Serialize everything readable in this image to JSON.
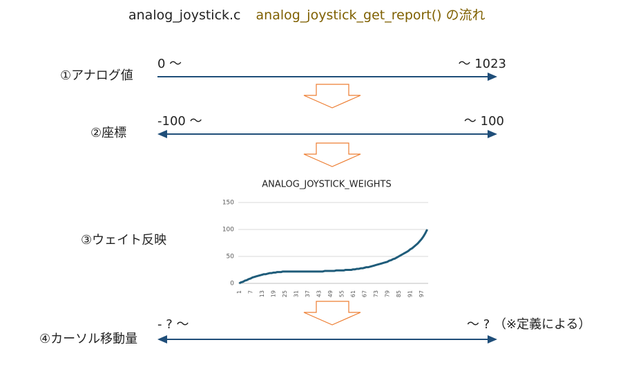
{
  "title": {
    "file": "analog_joystick.c",
    "function": "analog_joystick_get_report()",
    "suffix": "の流れ"
  },
  "rows": [
    {
      "label": "①アナログ値",
      "left": "0 〜",
      "right": "〜 1023"
    },
    {
      "label": "②座標",
      "left": "-100 〜",
      "right": "〜 100"
    },
    {
      "label": "③ウェイト反映"
    },
    {
      "label": "④カーソル移動量",
      "left": "- ? 〜",
      "right": "〜 ? （※定義による）"
    }
  ],
  "chart_data": {
    "type": "line",
    "title": "ANALOG_JOYSTICK_WEIGHTS",
    "color": "#1f5c7a",
    "categories": [
      1,
      null,
      null,
      null,
      null,
      null,
      7,
      null,
      null,
      null,
      null,
      null,
      13,
      null,
      null,
      null,
      null,
      null,
      19,
      null,
      null,
      null,
      null,
      null,
      25,
      null,
      null,
      null,
      null,
      null,
      31,
      null,
      null,
      null,
      null,
      null,
      37,
      null,
      null,
      null,
      null,
      null,
      43,
      null,
      null,
      null,
      null,
      null,
      49,
      null,
      null,
      null,
      null,
      null,
      55,
      null,
      null,
      null,
      null,
      null,
      61,
      null,
      null,
      null,
      null,
      null,
      67,
      null,
      null,
      null,
      null,
      null,
      73,
      null,
      null,
      null,
      null,
      null,
      79,
      null,
      null,
      null,
      null,
      null,
      85,
      null,
      null,
      null,
      null,
      null,
      91,
      null,
      null,
      null,
      null,
      null,
      97,
      null,
      null,
      null
    ],
    "values": [
      0,
      2,
      3,
      5,
      6,
      8,
      9,
      11,
      12,
      13,
      14,
      15,
      16,
      17,
      17,
      18,
      19,
      19,
      20,
      20,
      21,
      21,
      21,
      22,
      22,
      22,
      22,
      22,
      22,
      22,
      22,
      22,
      22,
      22,
      22,
      22,
      22,
      22,
      22,
      22,
      22,
      22,
      22,
      22,
      22,
      23,
      23,
      23,
      23,
      23,
      23,
      24,
      24,
      24,
      24,
      24,
      25,
      25,
      25,
      25,
      26,
      26,
      27,
      27,
      28,
      28,
      29,
      30,
      30,
      31,
      32,
      33,
      34,
      35,
      36,
      37,
      38,
      39,
      40,
      42,
      43,
      45,
      46,
      48,
      50,
      52,
      54,
      56,
      58,
      60,
      63,
      65,
      68,
      71,
      74,
      78,
      82,
      87,
      93,
      100
    ],
    "ylim": [
      0,
      150
    ],
    "yticks": [
      0,
      50,
      100,
      150
    ],
    "grid": true
  }
}
